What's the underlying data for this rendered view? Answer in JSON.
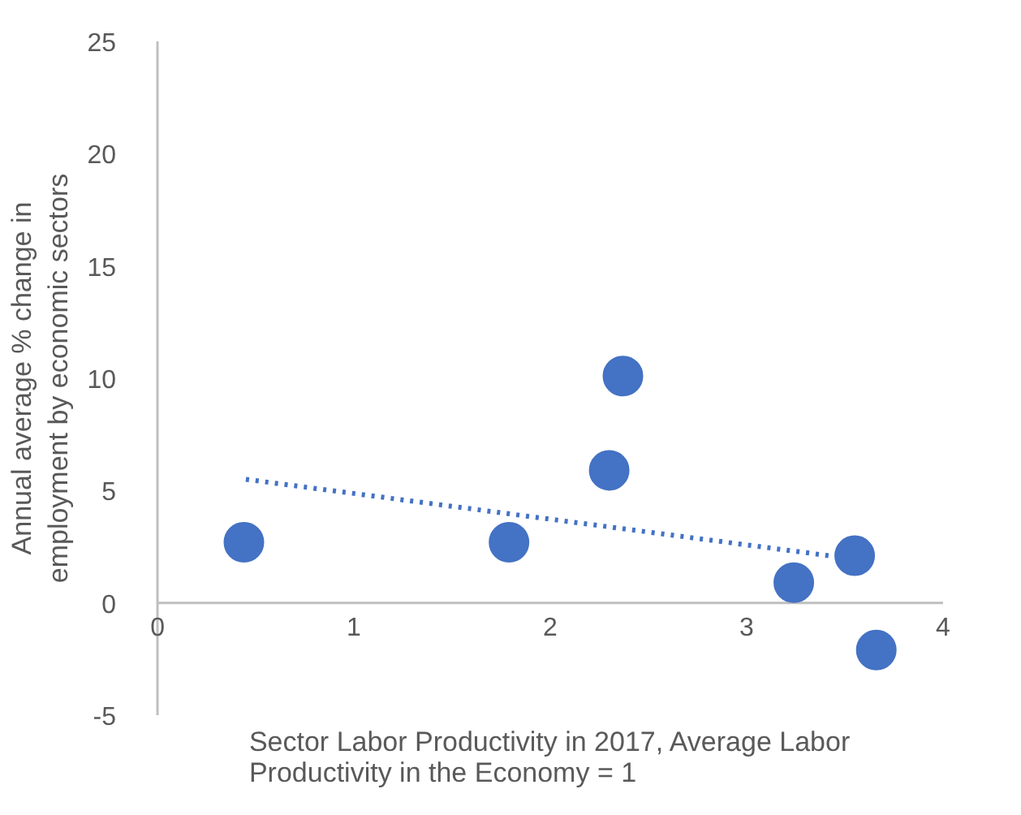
{
  "chart_data": {
    "type": "scatter",
    "xlabel": "Sector Labor Productivity in 2017, Average Labor\nProductivity in the Economy = 1",
    "ylabel": "Annual average % change in\nemployment by economic sectors",
    "xlim": [
      0,
      4
    ],
    "ylim": [
      -5,
      25
    ],
    "xticks": [
      0,
      1,
      2,
      3,
      4
    ],
    "yticks": [
      -5,
      0,
      5,
      10,
      15,
      20,
      25
    ],
    "grid": false,
    "series": [
      {
        "color": "#4472c4",
        "marker": "circle",
        "x": [
          0.44,
          1.79,
          2.3,
          2.37,
          3.24,
          3.55,
          3.66
        ],
        "values": [
          2.7,
          2.7,
          5.9,
          10.1,
          0.9,
          2.1,
          -2.1
        ]
      },
      {
        "type": "line",
        "color": "#4472c4",
        "line_style": "dotted",
        "x": [
          0.45,
          3.42
        ],
        "values": [
          5.5,
          2.1
        ]
      }
    ]
  }
}
